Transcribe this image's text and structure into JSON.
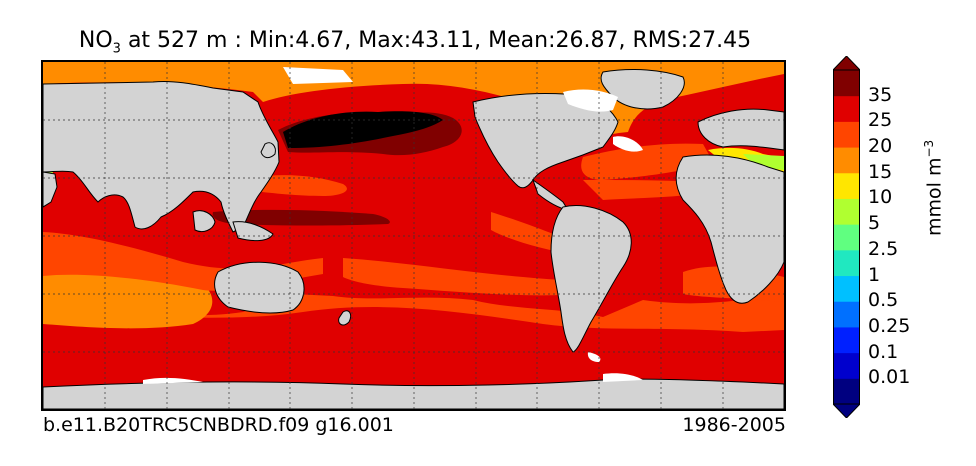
{
  "title": {
    "species": "NO",
    "subscript": "3",
    "rest": " at 527 m : Min:4.67, Max:43.11, Mean:26.87, RMS:27.45"
  },
  "footer": {
    "case_name": "b.e11.B20TRC5CNBDRD.f09 g16.001",
    "years": "1986-2005"
  },
  "colorbar": {
    "unit_base": "mmol m",
    "unit_exp": "−3",
    "levels": [
      "0.01",
      "0.1",
      "0.25",
      "0.5",
      "1",
      "2.5",
      "5",
      "10",
      "15",
      "20",
      "25",
      "35"
    ],
    "colors": [
      "#000080",
      "#0000cd",
      "#0020ff",
      "#0070ff",
      "#00c0ff",
      "#20e8c0",
      "#60ff80",
      "#b0ff30",
      "#ffe600",
      "#ff8c00",
      "#ff4500",
      "#e00000",
      "#800000"
    ]
  },
  "map": {
    "land_color": "#d3d3d3",
    "ice_color": "#ffffff",
    "background_field": "#e00000"
  }
}
